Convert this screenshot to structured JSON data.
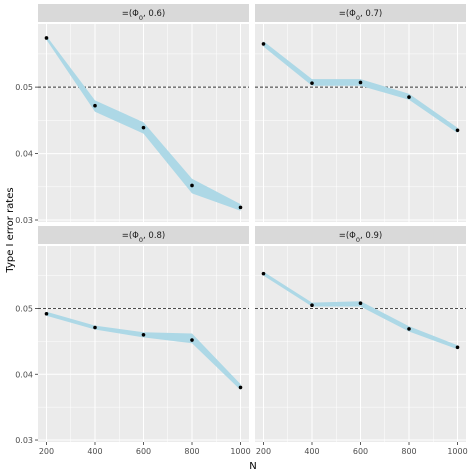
{
  "chart_data": {
    "type": "line",
    "xlabel": "N",
    "ylabel": "Type I error rates",
    "x_ticks": [
      200,
      400,
      600,
      800,
      1000
    ],
    "y_ticks": [
      0.03,
      0.04,
      0.05
    ],
    "y_tick_labels": [
      "0.03",
      "0.04",
      "0.05"
    ],
    "x_tick_labels": [
      "200",
      "400",
      "600",
      "800",
      "1000"
    ],
    "xlim": [
      165,
      1035
    ],
    "ylim": [
      0.0297,
      0.0595
    ],
    "reference_line": 0.05,
    "grid": true,
    "colors": {
      "band": "#add8e6",
      "point": "#000000",
      "panel_bg": "#ebebeb",
      "strip_bg": "#d9d9d9",
      "grid": "#ffffff",
      "reference": "#333333"
    },
    "panels": [
      {
        "label_prefix": "=(Φ",
        "label_sub": "0",
        "label_suffix": ", 0.6)",
        "x": [
          200,
          400,
          600,
          800,
          1000
        ],
        "y": [
          0.0574,
          0.0472,
          0.0439,
          0.0352,
          0.0319
        ],
        "lower": [
          0.0571,
          0.0463,
          0.043,
          0.034,
          0.0314
        ],
        "upper": [
          0.0577,
          0.048,
          0.0447,
          0.0362,
          0.0324
        ]
      },
      {
        "label_prefix": "=(Φ",
        "label_sub": "0",
        "label_suffix": ", 0.7)",
        "x": [
          200,
          400,
          600,
          800,
          1000
        ],
        "y": [
          0.0565,
          0.0506,
          0.0507,
          0.0485,
          0.0435
        ],
        "lower": [
          0.0561,
          0.0502,
          0.0502,
          0.0481,
          0.0431
        ],
        "upper": [
          0.0569,
          0.0512,
          0.0512,
          0.049,
          0.0439
        ]
      },
      {
        "label_prefix": "=(Φ",
        "label_sub": "0",
        "label_suffix": ", 0.8)",
        "x": [
          200,
          400,
          600,
          800,
          1000
        ],
        "y": [
          0.0492,
          0.0471,
          0.046,
          0.0452,
          0.038
        ],
        "lower": [
          0.0489,
          0.0468,
          0.0456,
          0.0447,
          0.0376
        ],
        "upper": [
          0.0495,
          0.0474,
          0.0464,
          0.0462,
          0.0385
        ]
      },
      {
        "label_prefix": "=(Φ",
        "label_sub": "0",
        "label_suffix": ", 0.9)",
        "x": [
          200,
          400,
          600,
          800,
          1000
        ],
        "y": [
          0.0553,
          0.0505,
          0.0508,
          0.0469,
          0.0441
        ],
        "lower": [
          0.055,
          0.0503,
          0.0503,
          0.0465,
          0.0438
        ],
        "upper": [
          0.0556,
          0.0509,
          0.0511,
          0.0473,
          0.0444
        ]
      }
    ]
  }
}
